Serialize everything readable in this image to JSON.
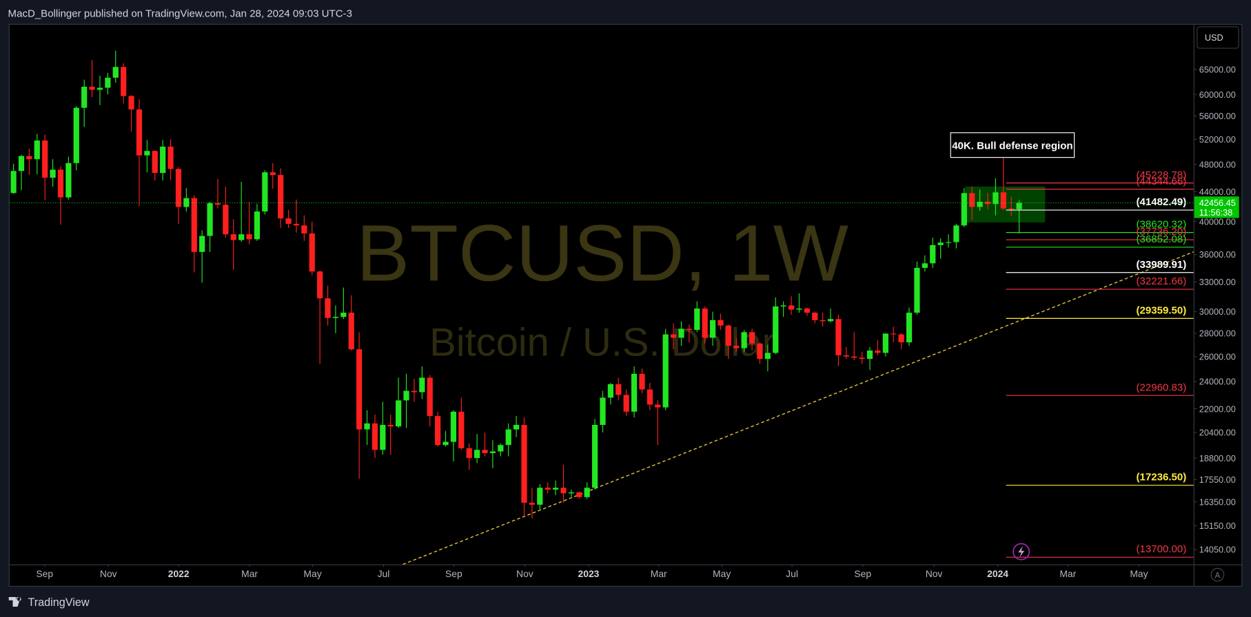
{
  "header": "MacD_Bollinger published on TradingView.com, Jan 28, 2024 09:03 UTC-3",
  "footer_brand": "TradingView",
  "chart_data": {
    "type": "candlestick",
    "symbol_watermark": "BTCUSD, 1W",
    "description_watermark": "Bitcoin / U.S. Dollar",
    "currency": "USD",
    "countdown": "11:56:38",
    "autoscale_button": "A",
    "note": "40K. Bull defense region",
    "log_scale": true,
    "grid": false,
    "up_color": "#22e622",
    "down_color": "#ff1f1f",
    "open": [
      43800,
      47000,
      49300,
      48800,
      51800,
      46000,
      47200,
      43200,
      48200,
      57500,
      61500,
      60900,
      61300,
      63300,
      65500,
      59700,
      57200,
      49400,
      50100,
      46700,
      50800,
      47300,
      41900,
      43100,
      36300,
      38200,
      42400,
      42200,
      38400,
      37700,
      38400,
      37800,
      41300,
      46800,
      46400,
      40400,
      39700,
      39500,
      38500,
      34100,
      31300,
      29400,
      29500,
      29900,
      26600,
      20600,
      21000,
      19300,
      20900,
      20800,
      22600,
      23300,
      23200,
      24300,
      21500,
      19600,
      19800,
      21800,
      19400,
      18800,
      19300,
      19100,
      19200,
      19600,
      20600,
      20900,
      16300,
      16200,
      17100,
      17000,
      17100,
      16800,
      16850,
      16600,
      17100,
      20900,
      22800,
      23800,
      23000,
      21800,
      24600,
      23400,
      22300,
      22100,
      27900,
      27600,
      28400,
      28300,
      30300,
      27600,
      29200,
      28700,
      26900,
      26700,
      28100,
      27100,
      25800,
      26300,
      30500,
      30600,
      30200,
      30300,
      29900,
      29200,
      29100,
      29300,
      26100,
      26000,
      25900,
      25800,
      26500,
      26300,
      27970,
      27900,
      27200,
      29900,
      34500,
      35000,
      37100,
      37400,
      37450,
      39500,
      43800,
      41900,
      42600,
      42300,
      43900,
      41700,
      41600
    ],
    "high": [
      48100,
      49500,
      50500,
      52900,
      52800,
      48800,
      47700,
      49200,
      57800,
      62900,
      67000,
      63700,
      64300,
      69000,
      66300,
      59900,
      59100,
      51900,
      50200,
      51900,
      52000,
      47600,
      44500,
      43500,
      38900,
      42600,
      45800,
      44700,
      40300,
      45400,
      42600,
      42300,
      47100,
      48200,
      47400,
      41500,
      42900,
      40800,
      40000,
      34200,
      32600,
      30600,
      32400,
      31600,
      28100,
      21900,
      21600,
      22500,
      21600,
      24300,
      24600,
      24200,
      25200,
      24500,
      21800,
      20500,
      21900,
      22800,
      19700,
      20300,
      20400,
      19900,
      19700,
      21000,
      21500,
      21400,
      17100,
      17300,
      17400,
      17500,
      18400,
      17000,
      16900,
      17400,
      21300,
      23300,
      23900,
      24300,
      23400,
      25200,
      25000,
      23900,
      22600,
      28400,
      28900,
      29100,
      28800,
      31000,
      30500,
      30000,
      29800,
      28800,
      27600,
      28300,
      28400,
      27200,
      27000,
      31400,
      31000,
      31500,
      31800,
      30400,
      30000,
      29900,
      30300,
      29700,
      26800,
      28100,
      26400,
      26800,
      27400,
      28000,
      28600,
      28000,
      30400,
      35200,
      35900,
      38000,
      37900,
      38400,
      39700,
      44500,
      44700,
      44300,
      43800,
      45900,
      48970,
      43300,
      42800
    ],
    "low": [
      43700,
      44200,
      46400,
      46500,
      42800,
      44700,
      39600,
      42900,
      47100,
      54100,
      59500,
      58000,
      60000,
      62300,
      58300,
      53300,
      42000,
      46800,
      45600,
      45600,
      45700,
      39700,
      41300,
      34000,
      32900,
      36300,
      41700,
      38000,
      34300,
      37500,
      37200,
      37600,
      40900,
      44400,
      39200,
      39200,
      38600,
      37600,
      33700,
      25400,
      28700,
      28000,
      29300,
      26500,
      17600,
      19600,
      18800,
      19000,
      19000,
      20700,
      20700,
      22500,
      22700,
      20800,
      19500,
      19500,
      18600,
      19300,
      18100,
      18500,
      18900,
      18200,
      18900,
      18900,
      20100,
      15600,
      15500,
      15900,
      16800,
      16700,
      16300,
      16600,
      16500,
      16500,
      17000,
      20400,
      22300,
      22600,
      21500,
      21400,
      23100,
      21900,
      19600,
      21900,
      26600,
      26900,
      27200,
      28100,
      27100,
      26900,
      28300,
      25800,
      26400,
      26400,
      26500,
      25400,
      24800,
      26200,
      29500,
      29700,
      29900,
      29600,
      28900,
      28600,
      29000,
      25200,
      25800,
      25700,
      25400,
      24900,
      26100,
      26000,
      27200,
      26600,
      26900,
      29700,
      34100,
      34500,
      35500,
      36800,
      36700,
      39300,
      40200,
      41400,
      41600,
      40800,
      41500,
      40700,
      38500
    ],
    "close": [
      47000,
      49300,
      48800,
      51800,
      46000,
      47200,
      43200,
      48200,
      57500,
      61500,
      60900,
      61300,
      63300,
      65500,
      59700,
      57200,
      49400,
      50100,
      46700,
      50800,
      47300,
      41900,
      43100,
      36300,
      38200,
      42400,
      42200,
      38400,
      37700,
      38400,
      37800,
      41300,
      46800,
      46400,
      40400,
      39700,
      39500,
      38500,
      34100,
      31300,
      29400,
      29500,
      29900,
      26600,
      20600,
      21000,
      19300,
      20900,
      20800,
      22600,
      23300,
      23200,
      24300,
      21500,
      19600,
      19800,
      21800,
      19400,
      18800,
      19300,
      19100,
      19200,
      19600,
      20600,
      20900,
      16300,
      16200,
      17100,
      17000,
      17100,
      16800,
      16850,
      16600,
      17100,
      20900,
      22800,
      23800,
      23000,
      21800,
      24600,
      23400,
      22300,
      22100,
      27900,
      27600,
      28400,
      28300,
      30300,
      27600,
      29200,
      28700,
      26900,
      26700,
      28100,
      27100,
      25800,
      26300,
      30500,
      30600,
      30200,
      30300,
      29900,
      29200,
      29100,
      29300,
      26100,
      26000,
      25900,
      25800,
      26500,
      26300,
      27970,
      27900,
      27200,
      29900,
      34500,
      35000,
      37100,
      37400,
      37450,
      39500,
      43800,
      41900,
      42600,
      42300,
      43900,
      41700,
      41600,
      42456.45
    ],
    "xlim": [
      -0.5,
      150.2
    ],
    "xticks": [
      {
        "value": 3.96,
        "label": "Sep"
      },
      {
        "value": 12.08,
        "label": "Nov"
      },
      {
        "value": 21.02,
        "label": "2022"
      },
      {
        "value": 30.05,
        "label": "Mar"
      },
      {
        "value": 38.07,
        "label": "May"
      },
      {
        "value": 47.1,
        "label": "Jul"
      },
      {
        "value": 56.04,
        "label": "Sep"
      },
      {
        "value": 65.08,
        "label": "Nov"
      },
      {
        "value": 73.2,
        "label": "2023"
      },
      {
        "value": 82.13,
        "label": "Mar"
      },
      {
        "value": 90.15,
        "label": "May"
      },
      {
        "value": 99.09,
        "label": "Jul"
      },
      {
        "value": 108.1,
        "label": "Sep"
      },
      {
        "value": 117.16,
        "label": "Nov"
      },
      {
        "value": 125.28,
        "label": "2024"
      },
      {
        "value": 134.2,
        "label": "Mar"
      },
      {
        "value": 143.25,
        "label": "May"
      }
    ],
    "ylim": [
      13390,
      75150
    ],
    "yticks": [
      {
        "value": 65000,
        "label": "65000.00"
      },
      {
        "value": 60000,
        "label": "60000.00"
      },
      {
        "value": 56000,
        "label": "56000.00"
      },
      {
        "value": 52000,
        "label": "52000.00"
      },
      {
        "value": 48000,
        "label": "48000.00"
      },
      {
        "value": 44000,
        "label": "44000.00"
      },
      {
        "value": 40000,
        "label": "40000.00"
      },
      {
        "value": 36000,
        "label": "36000.00"
      },
      {
        "value": 33000,
        "label": "33000.00"
      },
      {
        "value": 30000,
        "label": "30000.00"
      },
      {
        "value": 28000,
        "label": "28000.00"
      },
      {
        "value": 26000,
        "label": "26000.00"
      },
      {
        "value": 24000,
        "label": "24000.00"
      },
      {
        "value": 22000,
        "label": "22000.00"
      },
      {
        "value": 20400,
        "label": "20400.00"
      },
      {
        "value": 18800,
        "label": "18800.00"
      },
      {
        "value": 17550,
        "label": "17550.00"
      },
      {
        "value": 16350,
        "label": "16350.00"
      },
      {
        "value": 15150,
        "label": "15150.00"
      },
      {
        "value": 14050,
        "label": "14050.00"
      }
    ],
    "levels": [
      {
        "value": 45228.78,
        "label": "(45228.78)",
        "color": "#f23645"
      },
      {
        "value": 44344.66,
        "label": "(44344.66)",
        "color": "#f23645"
      },
      {
        "value": 41482.49,
        "label": "(41482.49)",
        "color": "#ffffff"
      },
      {
        "value": 38620.32,
        "label": "(38620.32)",
        "color": "#22e622"
      },
      {
        "value": 37736.2,
        "label": "(37736.20)",
        "color": "#f23645"
      },
      {
        "value": 36852.08,
        "label": "(36852.08)",
        "color": "#22e622"
      },
      {
        "value": 33989.91,
        "label": "(33989.91)",
        "color": "#ffffff"
      },
      {
        "value": 32221.66,
        "label": "(32221.66)",
        "color": "#f23645"
      },
      {
        "value": 29359.5,
        "label": "(29359.50)",
        "color": "#ffeb3b"
      },
      {
        "value": 22960.83,
        "label": "(22960.83)",
        "color": "#f23645"
      },
      {
        "value": 17236.5,
        "label": "(17236.50)",
        "color": "#ffeb3b"
      },
      {
        "value": 13700,
        "label": "(13700.00)",
        "color": "#f23645"
      }
    ]
  }
}
